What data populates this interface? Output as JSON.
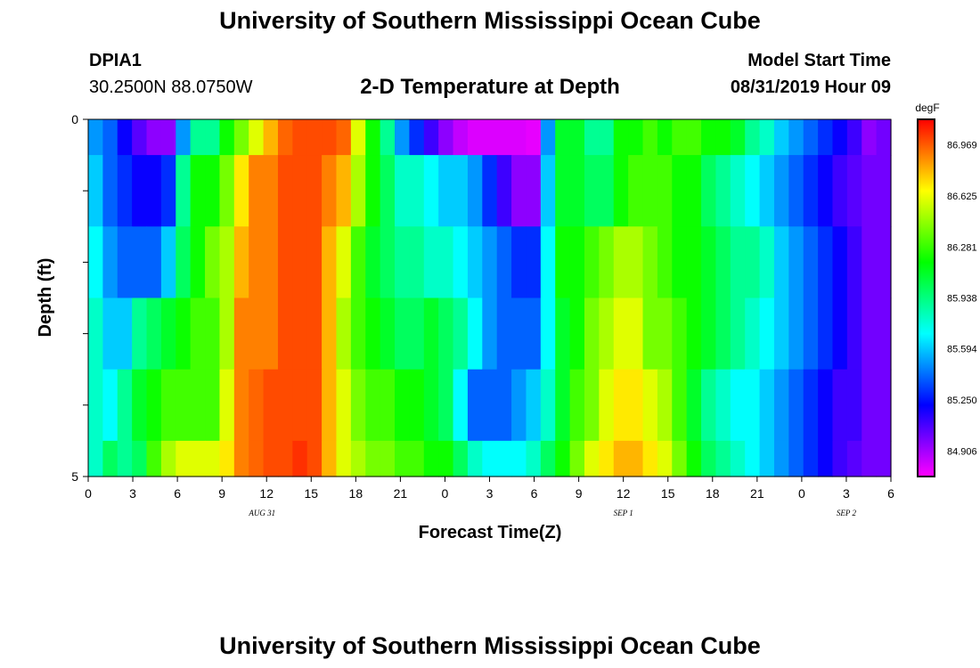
{
  "page": {
    "title_top": "University of Southern Mississippi Ocean Cube",
    "title_bottom": "University of Southern Mississippi Ocean Cube",
    "station_id": "DPIA1",
    "station_coords": "30.2500N 88.0750W",
    "plot_title": "2-D Temperature at Depth",
    "model_start_label": "Model Start Time",
    "model_start_value": "08/31/2019 Hour 09"
  },
  "chart_data": {
    "type": "heatmap",
    "title": "2-D Temperature at Depth",
    "xlabel": "Forecast Time(Z)",
    "ylabel": "Depth (ft)",
    "x_tick_labels": [
      "0",
      "3",
      "6",
      "9",
      "12",
      "15",
      "18",
      "21",
      "0",
      "3",
      "6",
      "9",
      "12",
      "15",
      "18",
      "21",
      "0",
      "3",
      "6"
    ],
    "date_labels": [
      {
        "label": "AUG 31",
        "tick_index": 3.9
      },
      {
        "label": "SEP 1",
        "tick_index": 12.0
      },
      {
        "label": "SEP 2",
        "tick_index": 17.0
      }
    ],
    "y_tick_labels": [
      "0",
      "5"
    ],
    "ylim": [
      0,
      5
    ],
    "x_hours_range": [
      0,
      54
    ],
    "depth_bands_ft": [
      0.5,
      1.5,
      2.5,
      3.5,
      4.5,
      5.0
    ],
    "colorbar": {
      "unit": "degF",
      "min": 84.734,
      "max": 87.141,
      "tick_labels": [
        "86.969",
        "86.625",
        "86.281",
        "85.938",
        "85.594",
        "85.250",
        "84.906"
      ],
      "tick_values": [
        86.969,
        86.625,
        86.281,
        85.938,
        85.594,
        85.25,
        84.906
      ]
    },
    "x_hours": [
      0,
      1,
      2,
      3,
      4,
      5,
      6,
      7,
      8,
      9,
      10,
      11,
      12,
      13,
      14,
      15,
      16,
      17,
      18,
      19,
      20,
      21,
      22,
      23,
      24,
      25,
      26,
      27,
      28,
      29,
      30,
      31,
      32,
      33,
      34,
      35,
      36,
      37,
      38,
      39,
      40,
      41,
      42,
      43,
      44,
      45,
      46,
      47,
      48,
      49,
      50,
      51,
      52,
      53,
      54
    ],
    "temperature_degF": [
      [
        85.5,
        85.4,
        85.2,
        85.05,
        84.95,
        84.95,
        85.5,
        85.9,
        85.9,
        86.2,
        86.4,
        86.6,
        86.8,
        86.95,
        87.0,
        87.0,
        87.0,
        86.95,
        86.6,
        86.2,
        85.9,
        85.5,
        85.3,
        85.1,
        84.95,
        84.85,
        84.8,
        84.8,
        84.8,
        84.8,
        84.78,
        85.5,
        86.1,
        86.1,
        85.9,
        85.9,
        86.2,
        86.2,
        86.3,
        86.2,
        86.3,
        86.3,
        86.2,
        86.2,
        86.1,
        85.9,
        85.8,
        85.6,
        85.5,
        85.4,
        85.3,
        85.2,
        85.1,
        84.95,
        85.0
      ],
      [
        85.6,
        85.4,
        85.3,
        85.2,
        85.2,
        85.3,
        85.9,
        86.2,
        86.2,
        86.4,
        86.7,
        86.9,
        86.9,
        87.0,
        87.0,
        87.0,
        86.9,
        86.8,
        86.5,
        86.2,
        86.0,
        85.8,
        85.8,
        85.7,
        85.6,
        85.6,
        85.5,
        85.3,
        85.1,
        84.95,
        84.95,
        85.6,
        86.1,
        86.1,
        86.0,
        86.0,
        86.2,
        86.3,
        86.3,
        86.3,
        86.2,
        86.2,
        86.0,
        85.9,
        85.8,
        85.7,
        85.6,
        85.5,
        85.4,
        85.3,
        85.2,
        85.1,
        85.05,
        85.0,
        85.0
      ],
      [
        85.7,
        85.5,
        85.4,
        85.4,
        85.4,
        85.6,
        86.0,
        86.2,
        86.4,
        86.5,
        86.8,
        86.9,
        86.9,
        87.0,
        87.0,
        87.0,
        86.8,
        86.6,
        86.3,
        86.1,
        86.0,
        85.9,
        85.9,
        85.8,
        85.8,
        85.7,
        85.6,
        85.5,
        85.4,
        85.3,
        85.3,
        85.7,
        86.2,
        86.2,
        86.3,
        86.4,
        86.5,
        86.5,
        86.4,
        86.3,
        86.2,
        86.2,
        86.1,
        86.0,
        85.9,
        85.9,
        85.8,
        85.6,
        85.5,
        85.4,
        85.3,
        85.2,
        85.1,
        85.0,
        85.0
      ],
      [
        85.8,
        85.6,
        85.6,
        85.9,
        86.0,
        86.1,
        86.2,
        86.3,
        86.3,
        86.5,
        86.9,
        86.9,
        86.9,
        87.0,
        87.0,
        87.0,
        86.8,
        86.5,
        86.3,
        86.2,
        86.1,
        86.0,
        86.0,
        86.1,
        86.0,
        85.9,
        85.7,
        85.5,
        85.4,
        85.4,
        85.4,
        85.7,
        86.1,
        86.2,
        86.4,
        86.5,
        86.6,
        86.6,
        86.4,
        86.4,
        86.3,
        86.2,
        86.1,
        86.0,
        85.9,
        85.8,
        85.7,
        85.6,
        85.5,
        85.4,
        85.3,
        85.2,
        85.1,
        85.0,
        85.0
      ],
      [
        85.8,
        85.7,
        85.9,
        86.1,
        86.2,
        86.3,
        86.3,
        86.3,
        86.3,
        86.6,
        86.9,
        86.95,
        87.0,
        87.0,
        87.0,
        87.0,
        86.8,
        86.6,
        86.4,
        86.3,
        86.3,
        86.2,
        86.2,
        86.1,
        86.0,
        85.7,
        85.4,
        85.4,
        85.4,
        85.5,
        85.6,
        85.8,
        86.1,
        86.3,
        86.4,
        86.6,
        86.7,
        86.7,
        86.6,
        86.5,
        86.3,
        86.1,
        85.9,
        85.8,
        85.7,
        85.7,
        85.6,
        85.5,
        85.4,
        85.3,
        85.2,
        85.1,
        85.1,
        85.0,
        85.0
      ],
      [
        85.8,
        86.0,
        85.9,
        86.0,
        86.3,
        86.5,
        86.6,
        86.6,
        86.6,
        86.7,
        86.9,
        86.95,
        87.0,
        87.0,
        87.05,
        87.0,
        86.8,
        86.6,
        86.5,
        86.4,
        86.4,
        86.3,
        86.3,
        86.2,
        86.2,
        86.0,
        85.8,
        85.7,
        85.7,
        85.7,
        85.8,
        86.0,
        86.2,
        86.4,
        86.6,
        86.7,
        86.8,
        86.8,
        86.7,
        86.6,
        86.4,
        86.2,
        86.0,
        85.9,
        85.8,
        85.7,
        85.6,
        85.5,
        85.4,
        85.3,
        85.2,
        85.1,
        85.05,
        85.0,
        85.0
      ]
    ]
  }
}
